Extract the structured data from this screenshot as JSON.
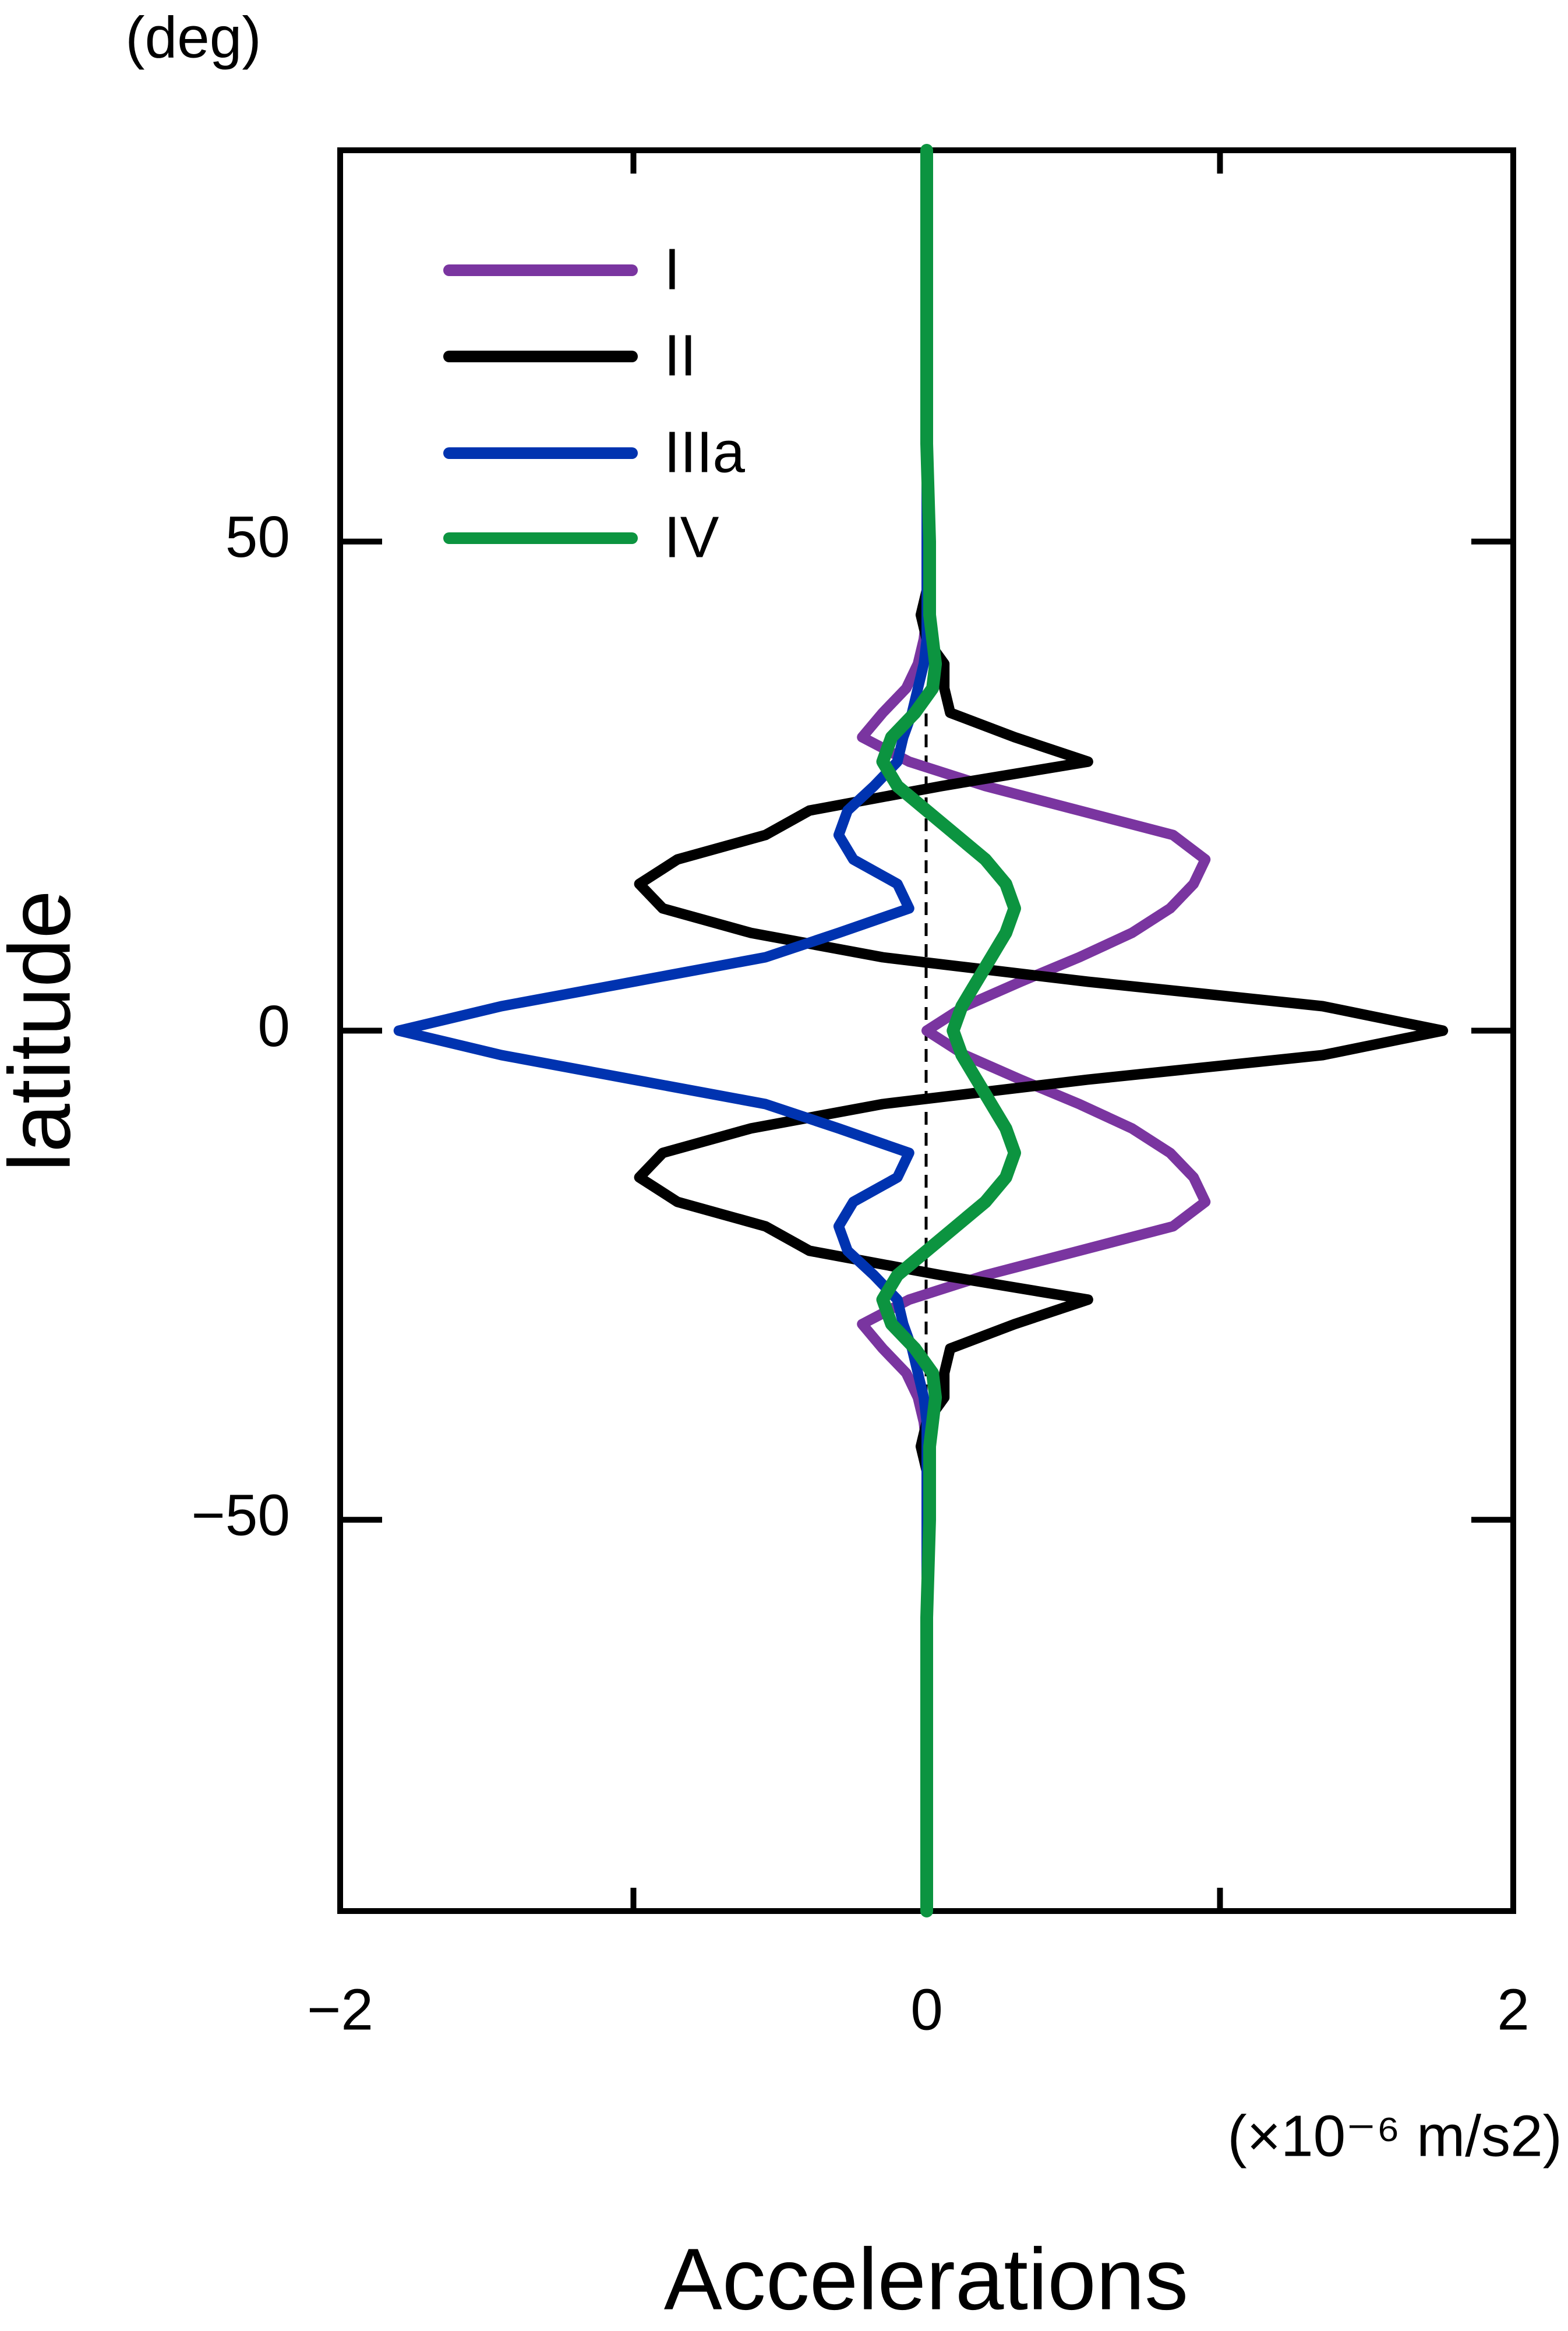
{
  "chart_data": {
    "type": "line",
    "title_y_unit": "(deg)",
    "ylabel": "latitude",
    "xlabel": "Accelerations",
    "x_unit": "(×10⁻⁶ m/s2)",
    "y": [
      -90,
      -80,
      -70,
      -60,
      -50,
      -45,
      -42.5,
      -40,
      -37.5,
      -35,
      -32.5,
      -30,
      -27.5,
      -25,
      -22.5,
      -20,
      -17.5,
      -15,
      -12.5,
      -10,
      -7.5,
      -5,
      -2.5,
      0,
      2.5,
      5,
      7.5,
      10,
      12.5,
      15,
      17.5,
      20,
      22.5,
      25,
      27.5,
      30,
      32.5,
      35,
      37.5,
      40,
      42.5,
      45,
      50,
      60,
      70,
      80,
      90
    ],
    "series": [
      {
        "name": "I",
        "color": "#7a35a0",
        "values": [
          0,
          0,
          0,
          0,
          0,
          0,
          0,
          -0.01,
          -0.03,
          -0.07,
          -0.15,
          -0.22,
          -0.06,
          0.2,
          0.52,
          0.84,
          0.95,
          0.91,
          0.83,
          0.7,
          0.52,
          0.32,
          0.13,
          0,
          0.13,
          0.32,
          0.52,
          0.7,
          0.83,
          0.91,
          0.95,
          0.84,
          0.52,
          0.2,
          -0.06,
          -0.22,
          -0.15,
          -0.07,
          -0.03,
          -0.01,
          0,
          0,
          0,
          0,
          0,
          0,
          0
        ]
      },
      {
        "name": "II",
        "color": "#000000",
        "values": [
          0,
          0,
          0,
          0,
          0,
          0,
          -0.02,
          0,
          0.06,
          0.06,
          0.08,
          0.3,
          0.55,
          0.05,
          -0.4,
          -0.55,
          -0.85,
          -0.98,
          -0.9,
          -0.6,
          -0.15,
          0.55,
          1.35,
          1.76,
          1.35,
          0.55,
          -0.15,
          -0.6,
          -0.9,
          -0.98,
          -0.85,
          -0.55,
          -0.4,
          0.05,
          0.55,
          0.3,
          0.08,
          0.06,
          0.06,
          0,
          -0.02,
          0,
          0,
          0,
          0,
          0,
          0
        ]
      },
      {
        "name": "IIIa",
        "color": "#0033b0",
        "values": [
          0,
          0,
          0,
          0,
          0,
          0,
          0,
          0,
          -0.01,
          -0.03,
          -0.05,
          -0.08,
          -0.1,
          -0.18,
          -0.27,
          -0.3,
          -0.25,
          -0.1,
          -0.06,
          -0.3,
          -0.55,
          -1.0,
          -1.45,
          -1.8,
          -1.45,
          -1.0,
          -0.55,
          -0.3,
          -0.06,
          -0.1,
          -0.25,
          -0.3,
          -0.27,
          -0.18,
          -0.1,
          -0.08,
          -0.05,
          -0.03,
          -0.01,
          0,
          0,
          0,
          0,
          0,
          0,
          0,
          0
        ]
      },
      {
        "name": "IV",
        "color": "#0c9440",
        "values": [
          0,
          0,
          0,
          0,
          0.01,
          0.01,
          0.01,
          0.02,
          0.03,
          0.02,
          -0.04,
          -0.12,
          -0.15,
          -0.1,
          0,
          0.1,
          0.2,
          0.27,
          0.3,
          0.27,
          0.22,
          0.17,
          0.12,
          0.09,
          0.12,
          0.17,
          0.22,
          0.27,
          0.3,
          0.27,
          0.2,
          0.1,
          0,
          -0.1,
          -0.15,
          -0.12,
          -0.04,
          0.02,
          0.03,
          0.02,
          0.01,
          0.01,
          0.01,
          0,
          0,
          0,
          0
        ]
      }
    ],
    "xlim": [
      -2,
      2
    ],
    "xticks": [
      {
        "value": -2,
        "label": "−2"
      },
      0,
      2
    ],
    "xminor_ticks": [
      -1,
      1
    ],
    "ylim": [
      -90,
      90
    ],
    "yticks": [
      {
        "value": -50,
        "label": "−50"
      },
      0,
      50
    ],
    "grid": false,
    "legend": "upper left"
  }
}
